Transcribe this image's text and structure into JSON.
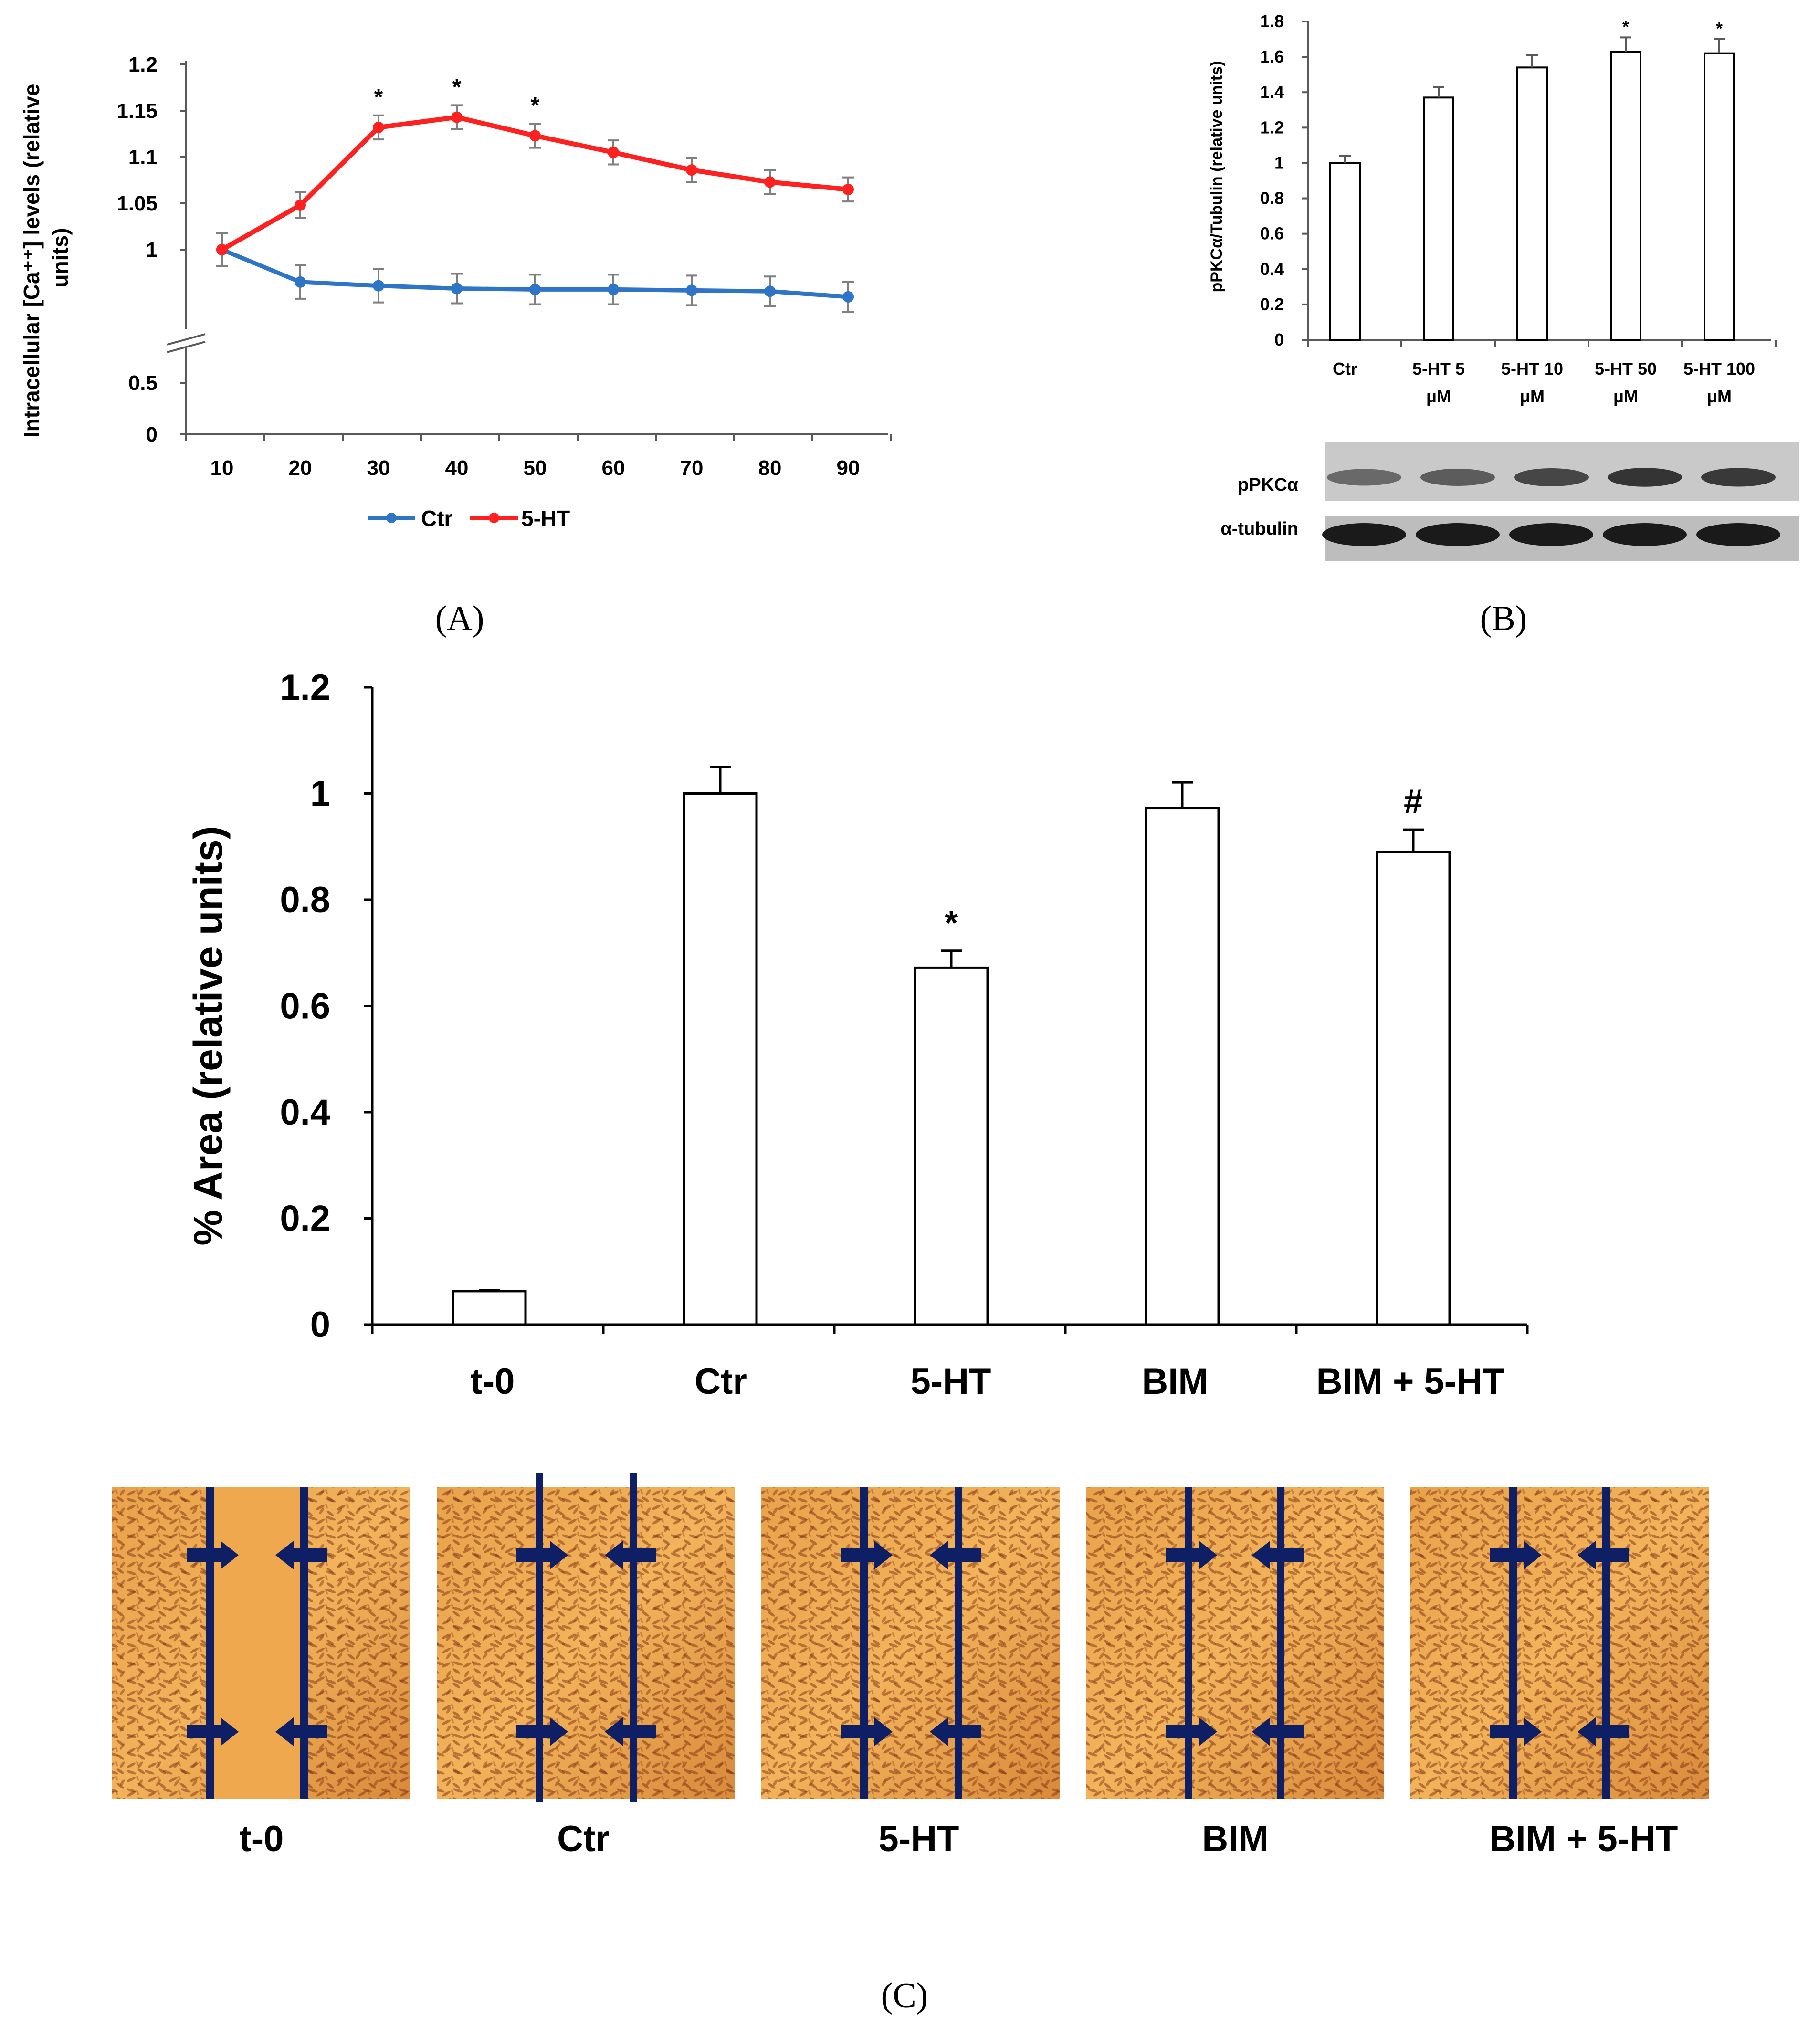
{
  "chart_data": [
    {
      "panel": "A",
      "type": "line",
      "ylabel": "Intracellular [Ca⁺⁺] levels (relative units)",
      "ylabel_lines": [
        "Intracellular [Ca⁺⁺] levels (relative",
        "units)"
      ],
      "x": [
        10,
        20,
        30,
        40,
        50,
        60,
        70,
        80,
        90
      ],
      "xtick_labels": [
        "10",
        "20",
        "30",
        "40",
        "50",
        "60",
        "70",
        "80",
        "90"
      ],
      "ytick_labels_upper": [
        "1.2",
        "1.15",
        "1.1",
        "1.05",
        "1"
      ],
      "ytick_labels_lower": [
        "0.5",
        "0"
      ],
      "ylim": [
        0,
        1.2
      ],
      "axis_break": [
        0.5,
        0.95
      ],
      "series": [
        {
          "name": "Ctr",
          "color": "#2E75C8",
          "values": [
            1.0,
            0.965,
            0.961,
            0.958,
            0.957,
            0.957,
            0.956,
            0.955,
            0.949
          ],
          "errors": [
            0.018,
            0.018,
            0.018,
            0.016,
            0.016,
            0.016,
            0.016,
            0.016,
            0.016
          ]
        },
        {
          "name": "5-HT",
          "color": "#FF2020",
          "values": [
            1.0,
            1.048,
            1.132,
            1.143,
            1.123,
            1.105,
            1.086,
            1.073,
            1.065
          ],
          "errors": [
            0.018,
            0.014,
            0.013,
            0.013,
            0.013,
            0.013,
            0.013,
            0.013,
            0.013
          ],
          "significance": [
            "",
            "",
            "*",
            "*",
            "*",
            "",
            "",
            "",
            ""
          ]
        }
      ],
      "legend": [
        "Ctr",
        "5-HT"
      ],
      "caption": "(A)"
    },
    {
      "panel": "B",
      "type": "bar",
      "ylabel": "pPKCα/Tubulin (relative units)",
      "categories": [
        "Ctr",
        "5-HT 5 μM",
        "5-HT 10 μM",
        "5-HT 50 μM",
        "5-HT 100 μM"
      ],
      "category_lines": [
        [
          "Ctr"
        ],
        [
          "5-HT 5",
          "μM"
        ],
        [
          "5-HT 10",
          "μM"
        ],
        [
          "5-HT 50",
          "μM"
        ],
        [
          "5-HT 100",
          "μM"
        ]
      ],
      "values": [
        1.0,
        1.37,
        1.54,
        1.63,
        1.62
      ],
      "errors": [
        0.04,
        0.06,
        0.07,
        0.08,
        0.08
      ],
      "significance": [
        "",
        "",
        "",
        "*",
        "*"
      ],
      "ylim": [
        0,
        1.8
      ],
      "ytick_labels": [
        "0",
        "0.2",
        "0.4",
        "0.6",
        "0.8",
        "1",
        "1.2",
        "1.4",
        "1.6",
        "1.8"
      ],
      "blot_labels": [
        "pPKCα",
        "α-tubulin"
      ],
      "caption": "(B)"
    },
    {
      "panel": "C",
      "type": "bar",
      "ylabel": "% Area (relative units)",
      "categories": [
        "t-0",
        "Ctr",
        "5-HT",
        "BIM",
        "BIM + 5-HT"
      ],
      "values": [
        0.063,
        1.0,
        0.672,
        0.973,
        0.89
      ],
      "errors": [
        0.002,
        0.05,
        0.032,
        0.048,
        0.042
      ],
      "significance": [
        "",
        "",
        "*",
        "",
        "#"
      ],
      "ylim": [
        0,
        1.2
      ],
      "ytick_labels": [
        "0",
        "0.2",
        "0.4",
        "0.6",
        "0.8",
        "1",
        "1.2"
      ],
      "image_labels": [
        "t-0",
        "Ctr",
        "5-HT",
        "BIM",
        "BIM + 5-HT"
      ],
      "caption": "(C)"
    }
  ]
}
